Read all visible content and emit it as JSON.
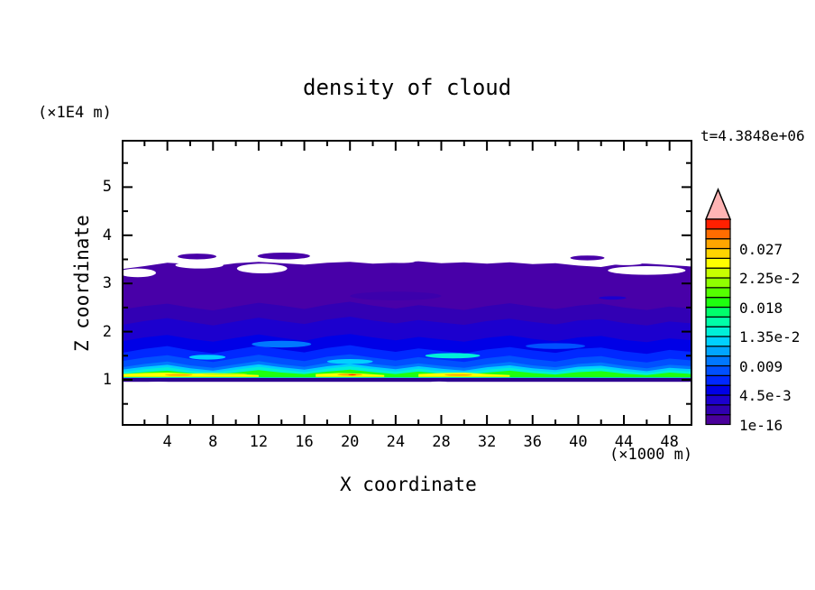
{
  "header": {
    "title": "density of cloud",
    "y_unit_label": "(×1E4 m)",
    "time_label": "t=4.3848e+06"
  },
  "axes": {
    "x_label": "X coordinate",
    "x_unit_label": "(×1000 m)",
    "y_label": "Z coordinate"
  },
  "chart_data": {
    "type": "filled-contour",
    "title": "density of cloud",
    "xlabel": "X coordinate",
    "ylabel": "Z coordinate",
    "x_unit": "(×1000 m)",
    "y_unit": "(×1E4 m)",
    "annotation": "t=4.3848e+06",
    "xlim": [
      0,
      50
    ],
    "ylim": [
      0.05,
      5.98
    ],
    "grid": false,
    "x_major_ticks": [
      4,
      8,
      12,
      16,
      20,
      24,
      28,
      32,
      36,
      40,
      44,
      48
    ],
    "x_minor_ticks": [
      2,
      6,
      10,
      14,
      18,
      22,
      26,
      30,
      34,
      38,
      42,
      46,
      50
    ],
    "y_major_ticks": [
      1,
      2,
      3,
      4,
      5
    ],
    "y_minor_ticks": [
      0.5,
      1.5,
      2.5,
      3.5,
      4.5,
      5.5
    ],
    "colorbar": {
      "position": "right",
      "contour_interval": 0.0015,
      "segment_colors_bottom_to_top": [
        "#4A009B",
        "#3000B0",
        "#1C00CE",
        "#0000E6",
        "#0028FF",
        "#0050FF",
        "#0078FF",
        "#00A5FF",
        "#00D0FF",
        "#00F0D8",
        "#00FFA8",
        "#00FF6C",
        "#1FFF0F",
        "#55FF00",
        "#90FF00",
        "#C8FF00",
        "#FFFF00",
        "#FFD400",
        "#FFA500",
        "#FF6C00",
        "#FF2000"
      ],
      "overflow_triangle_color": "#FFB4B4",
      "labels": [
        {
          "value": "0.027",
          "boundary": 18
        },
        {
          "value": "2.25e-2",
          "boundary": 15
        },
        {
          "value": "0.018",
          "boundary": 12
        },
        {
          "value": "1.35e-2",
          "boundary": 9
        },
        {
          "value": "0.009",
          "boundary": 6
        },
        {
          "value": "4.5e-3",
          "boundary": 3
        },
        {
          "value": "1e-16",
          "boundary": 0
        }
      ]
    },
    "field": {
      "x_samples": [
        0,
        2,
        4,
        6,
        8,
        10,
        12,
        14,
        16,
        18,
        20,
        22,
        24,
        26,
        28,
        30,
        32,
        34,
        36,
        38,
        40,
        42,
        44,
        46,
        48,
        50
      ],
      "bands": [
        {
          "name": "level-1e-16",
          "color": "#4800A8",
          "z_bottom": 0.96,
          "z_top": [
            3.3,
            3.36,
            3.43,
            3.4,
            3.36,
            3.42,
            3.45,
            3.42,
            3.39,
            3.43,
            3.45,
            3.41,
            3.43,
            3.46,
            3.42,
            3.44,
            3.41,
            3.44,
            3.4,
            3.42,
            3.37,
            3.34,
            3.42,
            3.41,
            3.38,
            3.35
          ]
        },
        {
          "name": "level-0.0015",
          "color": "#3200B4",
          "z_bottom": 1.04,
          "z_top": [
            2.46,
            2.53,
            2.58,
            2.5,
            2.44,
            2.52,
            2.6,
            2.54,
            2.47,
            2.56,
            2.62,
            2.54,
            2.48,
            2.55,
            2.5,
            2.45,
            2.53,
            2.59,
            2.52,
            2.47,
            2.54,
            2.58,
            2.5,
            2.45,
            2.52,
            2.48
          ]
        },
        {
          "name": "level-0.003",
          "color": "#1C00CE",
          "z_bottom": 1.04,
          "z_top": [
            2.14,
            2.22,
            2.28,
            2.2,
            2.13,
            2.21,
            2.29,
            2.22,
            2.16,
            2.25,
            2.31,
            2.23,
            2.17,
            2.24,
            2.19,
            2.14,
            2.22,
            2.27,
            2.2,
            2.15,
            2.23,
            2.26,
            2.18,
            2.13,
            2.21,
            2.17
          ]
        },
        {
          "name": "level-0.0045",
          "color": "#0000E6",
          "z_bottom": 1.04,
          "z_top": [
            1.8,
            1.88,
            1.93,
            1.85,
            1.79,
            1.87,
            1.94,
            1.87,
            1.81,
            1.9,
            1.95,
            1.88,
            1.82,
            1.89,
            1.84,
            1.79,
            1.87,
            1.92,
            1.85,
            1.8,
            1.88,
            1.91,
            1.83,
            1.78,
            1.86,
            1.82
          ]
        },
        {
          "name": "level-0.006",
          "color": "#0028FF",
          "z_bottom": 1.04,
          "z_top": [
            1.56,
            1.64,
            1.7,
            1.61,
            1.55,
            1.63,
            1.71,
            1.63,
            1.57,
            1.66,
            1.72,
            1.64,
            1.58,
            1.65,
            1.6,
            1.55,
            1.63,
            1.68,
            1.61,
            1.56,
            1.64,
            1.67,
            1.59,
            1.54,
            1.62,
            1.58
          ]
        },
        {
          "name": "level-0.0075",
          "color": "#0050FF",
          "z_bottom": 1.04,
          "z_top": [
            1.39,
            1.46,
            1.51,
            1.43,
            1.37,
            1.45,
            1.52,
            1.45,
            1.39,
            1.48,
            1.53,
            1.46,
            1.4,
            1.47,
            1.42,
            1.37,
            1.45,
            1.5,
            1.43,
            1.38,
            1.46,
            1.49,
            1.41,
            1.36,
            1.44,
            1.4
          ]
        },
        {
          "name": "level-0.009",
          "color": "#0078FF",
          "z_bottom": 1.04,
          "z_top": [
            1.26,
            1.33,
            1.38,
            1.3,
            1.25,
            1.32,
            1.39,
            1.32,
            1.27,
            1.35,
            1.4,
            1.33,
            1.28,
            1.34,
            1.29,
            1.25,
            1.32,
            1.37,
            1.3,
            1.26,
            1.33,
            1.36,
            1.29,
            1.24,
            1.31,
            1.28
          ]
        },
        {
          "name": "level-0.012",
          "color": "#00D0FF",
          "z_bottom": 1.04,
          "z_top": [
            1.21,
            1.27,
            1.31,
            1.24,
            1.19,
            1.26,
            1.32,
            1.26,
            1.21,
            1.28,
            1.33,
            1.27,
            1.22,
            1.28,
            1.23,
            1.19,
            1.26,
            1.3,
            1.24,
            1.2,
            1.27,
            1.29,
            1.23,
            1.18,
            1.25,
            1.22
          ]
        },
        {
          "name": "level-0.0135",
          "color": "#00F0D8",
          "z_bottom": 1.05,
          "z_top": [
            1.16,
            1.22,
            1.26,
            1.19,
            1.15,
            1.21,
            1.27,
            1.21,
            1.16,
            1.23,
            1.28,
            1.22,
            1.17,
            1.23,
            1.18,
            1.15,
            1.21,
            1.25,
            1.19,
            1.16,
            1.22,
            1.24,
            1.18,
            1.14,
            1.2,
            1.17
          ]
        },
        {
          "name": "level-0.018",
          "color": "#1FFF0F",
          "z_bottom": 1.05,
          "z_top": [
            1.12,
            1.16,
            1.19,
            1.14,
            1.11,
            1.15,
            1.2,
            1.15,
            1.12,
            1.17,
            1.21,
            1.16,
            1.12,
            1.17,
            1.13,
            1.11,
            1.15,
            1.19,
            1.14,
            1.11,
            1.16,
            1.18,
            1.13,
            1.1,
            1.15,
            1.12
          ]
        }
      ],
      "yellow_segments": [
        {
          "color": "#FFFF00",
          "x": [
            0,
            2,
            4,
            6,
            8,
            10,
            12
          ],
          "z_top": [
            1.12,
            1.14,
            1.15,
            1.13,
            1.14,
            1.12,
            1.1
          ],
          "z_bottom": 1.06
        },
        {
          "color": "#FFFF00",
          "x": [
            17,
            19,
            21,
            23
          ],
          "z_top": [
            1.12,
            1.14,
            1.13,
            1.1
          ],
          "z_bottom": 1.06
        },
        {
          "color": "#FFFF00",
          "x": [
            26,
            28,
            30,
            32,
            34
          ],
          "z_top": [
            1.12,
            1.14,
            1.15,
            1.12,
            1.1
          ],
          "z_bottom": 1.06
        }
      ],
      "patches": [
        {
          "color": "#3C00AC",
          "cx": 24,
          "cz": 2.74,
          "rx": 4.0,
          "rz": 0.09
        },
        {
          "color": "#1C00CE",
          "cx": 43,
          "cz": 2.7,
          "rx": 1.2,
          "rz": 0.035
        },
        {
          "color": "#0078FF",
          "cx": 14,
          "cz": 1.74,
          "rx": 2.6,
          "rz": 0.07
        },
        {
          "color": "#0050FF",
          "cx": 38,
          "cz": 1.7,
          "rx": 2.6,
          "rz": 0.06
        },
        {
          "color": "#00F0D8",
          "cx": 29,
          "cz": 1.5,
          "rx": 2.4,
          "rz": 0.055
        },
        {
          "color": "#00D0FF",
          "cx": 7.5,
          "cz": 1.47,
          "rx": 1.6,
          "rz": 0.05
        },
        {
          "color": "#00D0FF",
          "cx": 20,
          "cz": 1.38,
          "rx": 2.0,
          "rz": 0.05
        }
      ],
      "spots": [
        {
          "color": "#C8FF00",
          "cx": 9,
          "cz": 1.115,
          "rx": 2.0,
          "rz": 0.02
        },
        {
          "color": "#FFA500",
          "cx": 5,
          "cz": 1.1,
          "rx": 1.2,
          "rz": 0.018
        },
        {
          "color": "#FFA500",
          "cx": 20,
          "cz": 1.105,
          "rx": 1.1,
          "rz": 0.02
        },
        {
          "color": "#FF2000",
          "cx": 20.2,
          "cz": 1.103,
          "rx": 0.35,
          "rz": 0.011
        },
        {
          "color": "#FFA500",
          "cx": 29.5,
          "cz": 1.1,
          "rx": 1.2,
          "rz": 0.018
        }
      ],
      "holes": [
        {
          "cx": 1.4,
          "cz": 3.22,
          "rx": 1.6,
          "rz": 0.09
        },
        {
          "cx": 6.8,
          "cz": 3.38,
          "rx": 2.1,
          "rz": 0.07
        },
        {
          "cx": 12.3,
          "cz": 3.31,
          "rx": 2.2,
          "rz": 0.1
        },
        {
          "cx": 24.5,
          "cz": 3.46,
          "rx": 1.2,
          "rz": 0.035
        },
        {
          "cx": 44.2,
          "cz": 3.42,
          "rx": 1.4,
          "rz": 0.04
        },
        {
          "cx": 46.0,
          "cz": 3.27,
          "rx": 3.4,
          "rz": 0.09
        }
      ],
      "wisps": [
        {
          "cx": 6.6,
          "cz": 3.56,
          "rx": 1.7,
          "rz": 0.06
        },
        {
          "cx": 14.2,
          "cz": 3.57,
          "rx": 2.3,
          "rz": 0.07
        },
        {
          "cx": 40.8,
          "cz": 3.53,
          "rx": 1.5,
          "rz": 0.05
        }
      ],
      "cloud_base_line": {
        "color": "#2D0090",
        "z_top": 1.04,
        "z_bottom": 0.96
      },
      "base_notches": [
        {
          "cx": 3.2,
          "cz": 0.9,
          "rx": 1.9,
          "rz": 0.06
        },
        {
          "cx": 27.8,
          "cz": 0.92,
          "rx": 1.1,
          "rz": 0.045
        }
      ]
    }
  }
}
